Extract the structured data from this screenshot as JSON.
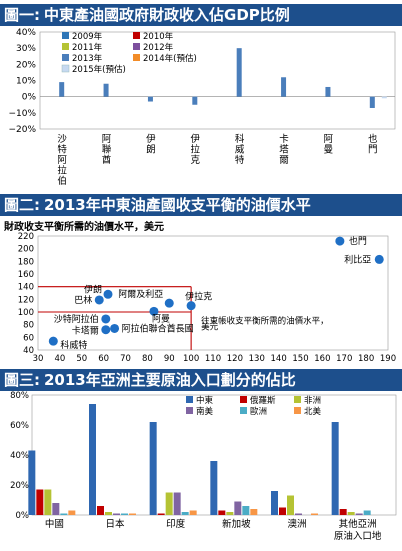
{
  "charts": [
    {
      "banner_num": "圖一:",
      "banner_title": "中東產油國政府財政收入佔GDP比例"
    },
    {
      "banner_num": "圖二:",
      "banner_title": "2013年中東油產國收支平衡的油價水平",
      "subtitle": "財政收支平衡所需的油價水平，美元"
    },
    {
      "banner_num": "圖三:",
      "banner_title": "2013年亞洲主要原油入口劃分的佔比"
    }
  ],
  "chart_data": [
    {
      "type": "bar",
      "ylim": [
        -20,
        40
      ],
      "yticks": [
        "40%",
        "30%",
        "20%",
        "10%",
        "0%",
        "−10%",
        "−20%"
      ],
      "categories": [
        "沙特阿拉伯",
        "阿聯酋",
        "伊朗",
        "伊拉克",
        "科威特",
        "卡塔爾",
        "阿曼",
        "也門"
      ],
      "series": [
        {
          "name": "2009年",
          "color": "#2e75b6",
          "values": [
            null,
            null,
            null,
            null,
            null,
            null,
            null,
            null
          ]
        },
        {
          "name": "2010年",
          "color": "#c00000",
          "values": [
            null,
            null,
            null,
            null,
            null,
            null,
            null,
            null
          ]
        },
        {
          "name": "2011年",
          "color": "#b5c334",
          "values": [
            null,
            null,
            null,
            null,
            null,
            null,
            null,
            null
          ]
        },
        {
          "name": "2012年",
          "color": "#7d4f9e",
          "values": [
            null,
            null,
            null,
            null,
            null,
            null,
            null,
            null
          ]
        },
        {
          "name": "2013年",
          "color": "#4a7ebb",
          "values": [
            9,
            8,
            -3,
            -5,
            30,
            12,
            6,
            -7
          ]
        },
        {
          "name": "2014年(預估)",
          "color": "#f28c28",
          "values": [
            null,
            null,
            null,
            null,
            null,
            null,
            null,
            null
          ]
        },
        {
          "name": "2015年(預估)",
          "color": "#c6d9f1",
          "values": [
            null,
            null,
            null,
            null,
            null,
            null,
            null,
            -1
          ]
        }
      ]
    },
    {
      "type": "scatter",
      "xlim": [
        30,
        190
      ],
      "ylim": [
        40,
        220
      ],
      "xticks": [
        30,
        40,
        50,
        60,
        70,
        80,
        90,
        100,
        110,
        120,
        130,
        140,
        150,
        160,
        170,
        180,
        190
      ],
      "yticks": [
        40,
        60,
        80,
        100,
        120,
        140,
        160,
        180,
        200,
        220
      ],
      "points": [
        {
          "label": "也門",
          "x": 168,
          "y": 212
        },
        {
          "label": "利比亞",
          "x": 186,
          "y": 183
        },
        {
          "label": "伊朗",
          "x": 62,
          "y": 128
        },
        {
          "label": "巴林",
          "x": 58,
          "y": 119
        },
        {
          "label": "阿爾及利亞",
          "x": 90,
          "y": 114
        },
        {
          "label": "伊拉克",
          "x": 100,
          "y": 110
        },
        {
          "label": "阿曼",
          "x": 83,
          "y": 101
        },
        {
          "label": "沙特阿拉伯",
          "x": 61,
          "y": 89
        },
        {
          "label": "卡塔爾",
          "x": 61,
          "y": 72
        },
        {
          "label": "阿拉伯聯合酋長國",
          "x": 65,
          "y": 74
        },
        {
          "label": "科威特",
          "x": 37,
          "y": 54
        }
      ],
      "reference_lines": [
        {
          "x": 100,
          "y": 140,
          "label": "往東帳收支平衡所需的油價水平，美元"
        }
      ]
    },
    {
      "type": "bar",
      "ylim": [
        0,
        80
      ],
      "yticks": [
        "80%",
        "60%",
        "40%",
        "20%",
        "0%"
      ],
      "categories": [
        "中國",
        "日本",
        "印度",
        "新加坡",
        "澳洲",
        "其他亞洲原油入口地"
      ],
      "series": [
        {
          "name": "中東",
          "color": "#2e67b1",
          "values": [
            43,
            74,
            62,
            36,
            16,
            62
          ]
        },
        {
          "name": "俄羅斯",
          "color": "#c00000",
          "values": [
            17,
            6,
            1,
            3,
            5,
            4
          ]
        },
        {
          "name": "非洲",
          "color": "#b5c334",
          "values": [
            17,
            2,
            15,
            2,
            13,
            2
          ]
        },
        {
          "name": "南美",
          "color": "#8064a2",
          "values": [
            8,
            1,
            15,
            9,
            1,
            1
          ]
        },
        {
          "name": "歐洲",
          "color": "#4bacc6",
          "values": [
            1,
            1,
            2,
            6,
            0,
            3
          ]
        },
        {
          "name": "北美",
          "color": "#f79646",
          "values": [
            3,
            1,
            3,
            4,
            1,
            0
          ]
        }
      ]
    }
  ]
}
